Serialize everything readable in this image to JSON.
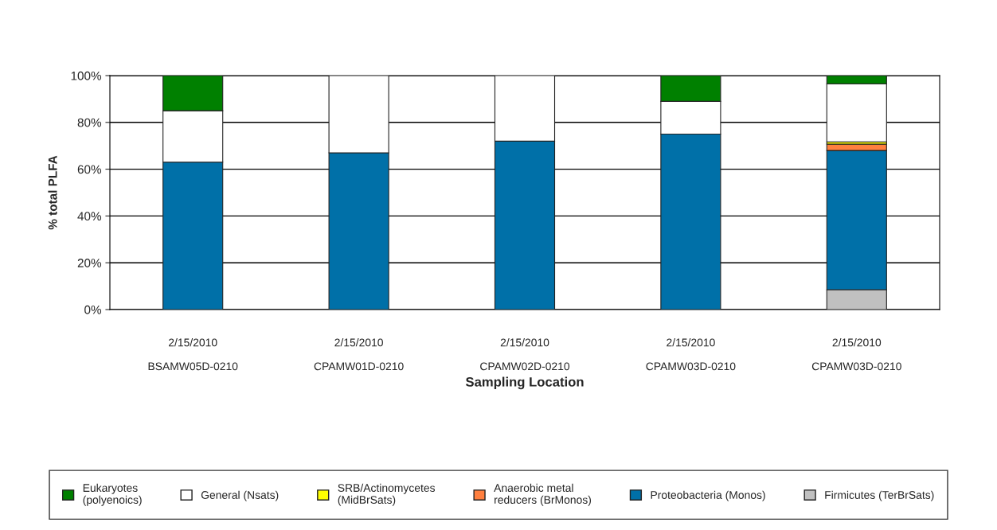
{
  "chart_data": {
    "type": "bar",
    "stacked": true,
    "xlabel": "Sampling Location",
    "ylabel": "% total PLFA",
    "categories": [
      "2/15/2010\n\nBSAMW05D-0210",
      "2/15/2010\n\nCPAMW01D-0210",
      "2/15/2010\n\nCPAMW02D-0210",
      "2/15/2010\n\nCPAMW03D-0210",
      "2/15/2010\n\nCPAMW03D-0210"
    ],
    "series": [
      {
        "name": "Firmicutes (TerBrSats)",
        "color": "#c0c0c0",
        "values": [
          0,
          0,
          0,
          0,
          8.5
        ]
      },
      {
        "name": "Proteobacteria (Monos)",
        "color": "#0070a8",
        "values": [
          63,
          67,
          72,
          75,
          59.5
        ]
      },
      {
        "name": "Anaerobic metal\nreducers (BrMonos)",
        "color": "#ff7f3f",
        "values": [
          0,
          0,
          0,
          0,
          2.7
        ]
      },
      {
        "name": "SRB/Actinomycetes\n(MidBrSats)",
        "color": "#ffff00",
        "values": [
          0,
          0,
          0,
          0,
          1
        ]
      },
      {
        "name": "General (Nsats)",
        "color": "#ffffff",
        "values": [
          22,
          33,
          28,
          14,
          24.8
        ]
      },
      {
        "name": "Eukaryotes\n(polyenoics)",
        "color": "#008000",
        "values": [
          15,
          0,
          0,
          11,
          3.5
        ]
      }
    ],
    "ylim": [
      0,
      100
    ],
    "yticks": [
      {
        "value": 0,
        "label": "0%"
      },
      {
        "value": 20,
        "label": "20%"
      },
      {
        "value": 40,
        "label": "40%"
      },
      {
        "value": 60,
        "label": "60%"
      },
      {
        "value": 80,
        "label": "80%"
      },
      {
        "value": 100,
        "label": "100%"
      }
    ],
    "grid": "y",
    "legend": "bottom"
  }
}
